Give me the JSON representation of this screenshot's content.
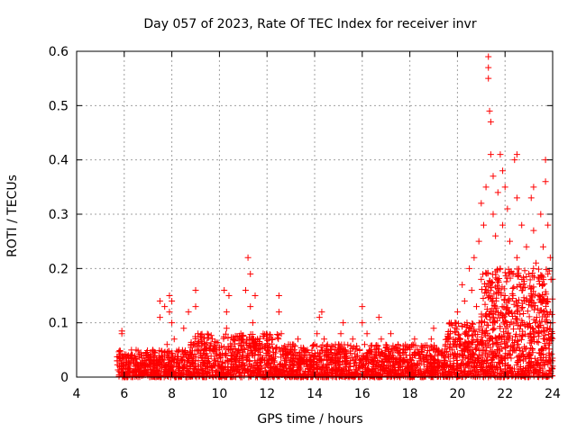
{
  "chart_data": {
    "type": "scatter",
    "title": "Day 057 of 2023, Rate Of TEC Index for receiver invr",
    "xlabel": "GPS time / hours",
    "ylabel": "ROTI / TECUs",
    "xlim": [
      4,
      24
    ],
    "ylim": [
      0,
      0.6
    ],
    "x_ticks": [
      "4",
      "6",
      "8",
      "10",
      "12",
      "14",
      "16",
      "18",
      "20",
      "22",
      "24"
    ],
    "y_ticks": [
      "0",
      "0.1",
      "0.2",
      "0.3",
      "0.4",
      "0.5",
      "0.6"
    ],
    "grid": true,
    "marker": "plus",
    "color": "#ff0000",
    "series": [
      {
        "points": [
          [
            5.7,
            0.03
          ],
          [
            5.8,
            0.02
          ],
          [
            5.9,
            0.04
          ],
          [
            5.9,
            0.08
          ],
          [
            5.9,
            0.085
          ],
          [
            6.0,
            0.02
          ],
          [
            6.1,
            0.03
          ],
          [
            6.2,
            0.02
          ],
          [
            6.3,
            0.04
          ],
          [
            6.4,
            0.03
          ],
          [
            6.5,
            0.05
          ],
          [
            6.6,
            0.02
          ],
          [
            6.7,
            0.04
          ],
          [
            6.8,
            0.03
          ],
          [
            6.9,
            0.02
          ],
          [
            7.0,
            0.04
          ],
          [
            7.1,
            0.03
          ],
          [
            7.2,
            0.05
          ],
          [
            7.3,
            0.02
          ],
          [
            7.4,
            0.03
          ],
          [
            7.5,
            0.14
          ],
          [
            7.5,
            0.11
          ],
          [
            7.6,
            0.04
          ],
          [
            7.7,
            0.13
          ],
          [
            7.7,
            0.02
          ],
          [
            7.8,
            0.06
          ],
          [
            7.9,
            0.15
          ],
          [
            7.9,
            0.12
          ],
          [
            8.0,
            0.14
          ],
          [
            8.0,
            0.1
          ],
          [
            8.0,
            0.03
          ],
          [
            8.1,
            0.07
          ],
          [
            8.2,
            0.02
          ],
          [
            8.3,
            0.05
          ],
          [
            8.4,
            0.03
          ],
          [
            8.5,
            0.09
          ],
          [
            8.6,
            0.04
          ],
          [
            8.7,
            0.12
          ],
          [
            8.8,
            0.06
          ],
          [
            8.9,
            0.03
          ],
          [
            9.0,
            0.16
          ],
          [
            9.0,
            0.13
          ],
          [
            9.1,
            0.08
          ],
          [
            9.2,
            0.04
          ],
          [
            9.3,
            0.03
          ],
          [
            9.4,
            0.06
          ],
          [
            9.5,
            0.02
          ],
          [
            9.6,
            0.05
          ],
          [
            9.7,
            0.07
          ],
          [
            9.8,
            0.03
          ],
          [
            9.9,
            0.05
          ],
          [
            10.0,
            0.04
          ],
          [
            10.1,
            0.02
          ],
          [
            10.2,
            0.16
          ],
          [
            10.3,
            0.12
          ],
          [
            10.3,
            0.09
          ],
          [
            10.4,
            0.15
          ],
          [
            10.5,
            0.04
          ],
          [
            10.6,
            0.07
          ],
          [
            10.7,
            0.03
          ],
          [
            10.8,
            0.05
          ],
          [
            10.9,
            0.08
          ],
          [
            11.0,
            0.04
          ],
          [
            11.1,
            0.16
          ],
          [
            11.2,
            0.22
          ],
          [
            11.3,
            0.19
          ],
          [
            11.3,
            0.13
          ],
          [
            11.4,
            0.1
          ],
          [
            11.5,
            0.15
          ],
          [
            11.6,
            0.07
          ],
          [
            11.7,
            0.04
          ],
          [
            11.8,
            0.06
          ],
          [
            11.9,
            0.03
          ],
          [
            12.0,
            0.05
          ],
          [
            12.1,
            0.04
          ],
          [
            12.2,
            0.07
          ],
          [
            12.3,
            0.03
          ],
          [
            12.5,
            0.15
          ],
          [
            12.5,
            0.12
          ],
          [
            12.6,
            0.08
          ],
          [
            12.7,
            0.04
          ],
          [
            12.8,
            0.03
          ],
          [
            12.9,
            0.06
          ],
          [
            13.0,
            0.02
          ],
          [
            13.2,
            0.04
          ],
          [
            13.3,
            0.07
          ],
          [
            13.5,
            0.03
          ],
          [
            13.7,
            0.05
          ],
          [
            13.8,
            0.04
          ],
          [
            14.0,
            0.06
          ],
          [
            14.1,
            0.08
          ],
          [
            14.2,
            0.11
          ],
          [
            14.3,
            0.12
          ],
          [
            14.4,
            0.07
          ],
          [
            14.5,
            0.04
          ],
          [
            14.7,
            0.05
          ],
          [
            14.8,
            0.03
          ],
          [
            15.0,
            0.06
          ],
          [
            15.1,
            0.08
          ],
          [
            15.2,
            0.1
          ],
          [
            15.3,
            0.05
          ],
          [
            15.5,
            0.03
          ],
          [
            15.6,
            0.07
          ],
          [
            15.8,
            0.04
          ],
          [
            16.0,
            0.13
          ],
          [
            16.0,
            0.1
          ],
          [
            16.1,
            0.06
          ],
          [
            16.2,
            0.08
          ],
          [
            16.3,
            0.05
          ],
          [
            16.5,
            0.03
          ],
          [
            16.7,
            0.11
          ],
          [
            16.8,
            0.07
          ],
          [
            17.0,
            0.04
          ],
          [
            17.2,
            0.08
          ],
          [
            17.3,
            0.05
          ],
          [
            17.5,
            0.06
          ],
          [
            17.7,
            0.03
          ],
          [
            17.8,
            0.05
          ],
          [
            18.0,
            0.04
          ],
          [
            18.2,
            0.07
          ],
          [
            18.4,
            0.03
          ],
          [
            18.5,
            0.05
          ],
          [
            18.7,
            0.04
          ],
          [
            18.9,
            0.07
          ],
          [
            19.0,
            0.09
          ],
          [
            19.2,
            0.05
          ],
          [
            19.4,
            0.04
          ],
          [
            19.5,
            0.06
          ],
          [
            19.7,
            0.08
          ],
          [
            19.9,
            0.1
          ],
          [
            20.0,
            0.12
          ],
          [
            20.1,
            0.07
          ],
          [
            20.2,
            0.17
          ],
          [
            20.3,
            0.14
          ],
          [
            20.4,
            0.1
          ],
          [
            20.5,
            0.2
          ],
          [
            20.6,
            0.16
          ],
          [
            20.7,
            0.22
          ],
          [
            20.8,
            0.13
          ],
          [
            20.9,
            0.25
          ],
          [
            21.0,
            0.32
          ],
          [
            21.0,
            0.18
          ],
          [
            21.1,
            0.28
          ],
          [
            21.2,
            0.35
          ],
          [
            21.3,
            0.59
          ],
          [
            21.3,
            0.57
          ],
          [
            21.3,
            0.55
          ],
          [
            21.35,
            0.49
          ],
          [
            21.4,
            0.47
          ],
          [
            21.4,
            0.41
          ],
          [
            21.5,
            0.37
          ],
          [
            21.5,
            0.3
          ],
          [
            21.6,
            0.26
          ],
          [
            21.7,
            0.34
          ],
          [
            21.8,
            0.41
          ],
          [
            21.8,
            0.2
          ],
          [
            21.9,
            0.38
          ],
          [
            21.9,
            0.28
          ],
          [
            22.0,
            0.35
          ],
          [
            22.0,
            0.15
          ],
          [
            22.1,
            0.31
          ],
          [
            22.2,
            0.25
          ],
          [
            22.3,
            0.19
          ],
          [
            22.4,
            0.4
          ],
          [
            22.5,
            0.41
          ],
          [
            22.5,
            0.33
          ],
          [
            22.5,
            0.22
          ],
          [
            22.6,
            0.17
          ],
          [
            22.7,
            0.28
          ],
          [
            22.8,
            0.14
          ],
          [
            22.9,
            0.24
          ],
          [
            23.0,
            0.19
          ],
          [
            23.1,
            0.33
          ],
          [
            23.2,
            0.35
          ],
          [
            23.2,
            0.27
          ],
          [
            23.3,
            0.21
          ],
          [
            23.4,
            0.15
          ],
          [
            23.5,
            0.3
          ],
          [
            23.6,
            0.24
          ],
          [
            23.7,
            0.4
          ],
          [
            23.7,
            0.36
          ],
          [
            23.8,
            0.28
          ],
          [
            23.8,
            0.19
          ],
          [
            23.9,
            0.22
          ],
          [
            23.9,
            0.12
          ],
          [
            24.0,
            0.1
          ],
          [
            24.0,
            0.02
          ]
        ]
      }
    ],
    "bands": [
      {
        "x0": 5.7,
        "x1": 8.8,
        "y0": 0.0,
        "y1": 0.05
      },
      {
        "x0": 8.8,
        "x1": 12.5,
        "y0": 0.0,
        "y1": 0.08
      },
      {
        "x0": 12.5,
        "x1": 19.5,
        "y0": 0.0,
        "y1": 0.06
      },
      {
        "x0": 19.5,
        "x1": 21.0,
        "y0": 0.0,
        "y1": 0.1
      },
      {
        "x0": 21.0,
        "x1": 24.0,
        "y0": 0.0,
        "y1": 0.2
      }
    ]
  }
}
